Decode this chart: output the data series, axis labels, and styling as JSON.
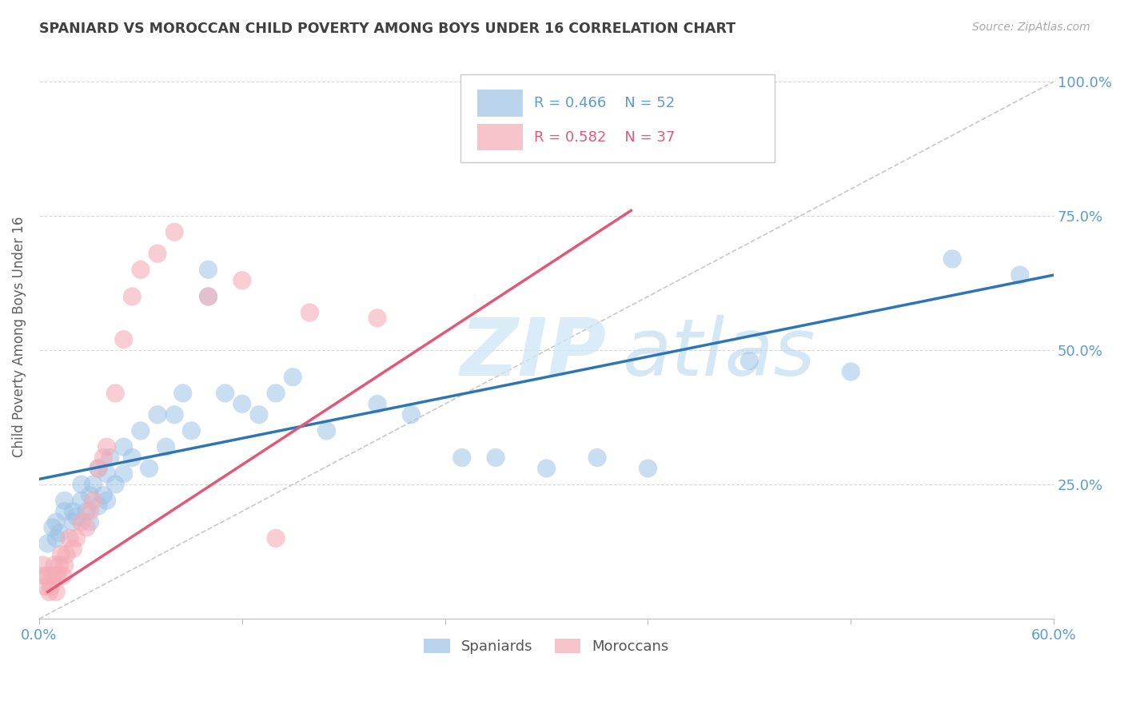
{
  "title": "SPANIARD VS MOROCCAN CHILD POVERTY AMONG BOYS UNDER 16 CORRELATION CHART",
  "source": "Source: ZipAtlas.com",
  "ylabel": "Child Poverty Among Boys Under 16",
  "xlim": [
    0.0,
    0.6
  ],
  "ylim": [
    0.0,
    1.05
  ],
  "blue_color": "#9dc3e6",
  "pink_color": "#f4acb7",
  "blue_line_color": "#2e75b6",
  "pink_line_color": "#e05a78",
  "ref_line_color": "#c8c8c8",
  "grid_color": "#d9d9d9",
  "tick_color": "#5b9bd5",
  "title_color": "#404040",
  "ylabel_color": "#606060",
  "blue_scatter_x": [
    0.005,
    0.008,
    0.01,
    0.01,
    0.012,
    0.015,
    0.015,
    0.02,
    0.02,
    0.022,
    0.025,
    0.025,
    0.028,
    0.03,
    0.03,
    0.032,
    0.035,
    0.035,
    0.038,
    0.04,
    0.04,
    0.042,
    0.045,
    0.05,
    0.05,
    0.055,
    0.06,
    0.065,
    0.07,
    0.075,
    0.08,
    0.085,
    0.09,
    0.1,
    0.1,
    0.11,
    0.12,
    0.13,
    0.14,
    0.15,
    0.17,
    0.2,
    0.22,
    0.25,
    0.27,
    0.3,
    0.33,
    0.36,
    0.42,
    0.48,
    0.54,
    0.58
  ],
  "blue_scatter_y": [
    0.14,
    0.17,
    0.15,
    0.18,
    0.16,
    0.2,
    0.22,
    0.18,
    0.2,
    0.19,
    0.22,
    0.25,
    0.2,
    0.18,
    0.23,
    0.25,
    0.21,
    0.28,
    0.23,
    0.22,
    0.27,
    0.3,
    0.25,
    0.32,
    0.27,
    0.3,
    0.35,
    0.28,
    0.38,
    0.32,
    0.38,
    0.42,
    0.35,
    0.6,
    0.65,
    0.42,
    0.4,
    0.38,
    0.42,
    0.45,
    0.35,
    0.4,
    0.38,
    0.3,
    0.3,
    0.28,
    0.3,
    0.28,
    0.48,
    0.46,
    0.67,
    0.64
  ],
  "pink_scatter_x": [
    0.002,
    0.003,
    0.004,
    0.005,
    0.006,
    0.007,
    0.008,
    0.009,
    0.01,
    0.01,
    0.011,
    0.012,
    0.013,
    0.014,
    0.015,
    0.016,
    0.018,
    0.02,
    0.022,
    0.025,
    0.028,
    0.03,
    0.032,
    0.035,
    0.038,
    0.04,
    0.045,
    0.05,
    0.055,
    0.06,
    0.07,
    0.08,
    0.1,
    0.12,
    0.14,
    0.16,
    0.2
  ],
  "pink_scatter_y": [
    0.1,
    0.08,
    0.06,
    0.08,
    0.05,
    0.06,
    0.08,
    0.1,
    0.05,
    0.08,
    0.08,
    0.1,
    0.12,
    0.08,
    0.1,
    0.12,
    0.15,
    0.13,
    0.15,
    0.18,
    0.17,
    0.2,
    0.22,
    0.28,
    0.3,
    0.32,
    0.42,
    0.52,
    0.6,
    0.65,
    0.68,
    0.72,
    0.6,
    0.63,
    0.15,
    0.57,
    0.56
  ],
  "blue_line_x0": 0.0,
  "blue_line_y0": 0.26,
  "blue_line_x1": 0.6,
  "blue_line_y1": 0.64,
  "pink_line_x0": 0.005,
  "pink_line_y0": 0.05,
  "pink_line_x1": 0.35,
  "pink_line_y1": 0.76,
  "ref_line_x0": 0.0,
  "ref_line_y0": 0.0,
  "ref_line_x1": 0.6,
  "ref_line_y1": 1.0
}
